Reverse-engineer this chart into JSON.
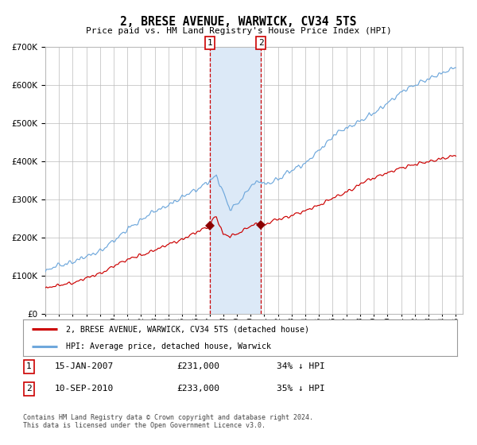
{
  "title": "2, BRESE AVENUE, WARWICK, CV34 5TS",
  "subtitle": "Price paid vs. HM Land Registry's House Price Index (HPI)",
  "sale1_date": "15-JAN-2007",
  "sale1_price": 231000,
  "sale1_pct": "34%",
  "sale2_date": "10-SEP-2010",
  "sale2_price": 233000,
  "sale2_pct": "35%",
  "legend_label_property": "2, BRESE AVENUE, WARWICK, CV34 5TS (detached house)",
  "legend_label_hpi": "HPI: Average price, detached house, Warwick",
  "footer": "Contains HM Land Registry data © Crown copyright and database right 2024.\nThis data is licensed under the Open Government Licence v3.0.",
  "hpi_color": "#6fa8dc",
  "property_color": "#cc0000",
  "marker_color": "#8b0000",
  "vline_color": "#cc0000",
  "shade_color": "#dce9f7",
  "grid_color": "#bbbbbb",
  "bg_color": "#ffffff",
  "x_start_year": 1995,
  "x_end_year": 2025,
  "y_max": 700000,
  "sale1_year": 2007.042,
  "sale2_year": 2010.75
}
